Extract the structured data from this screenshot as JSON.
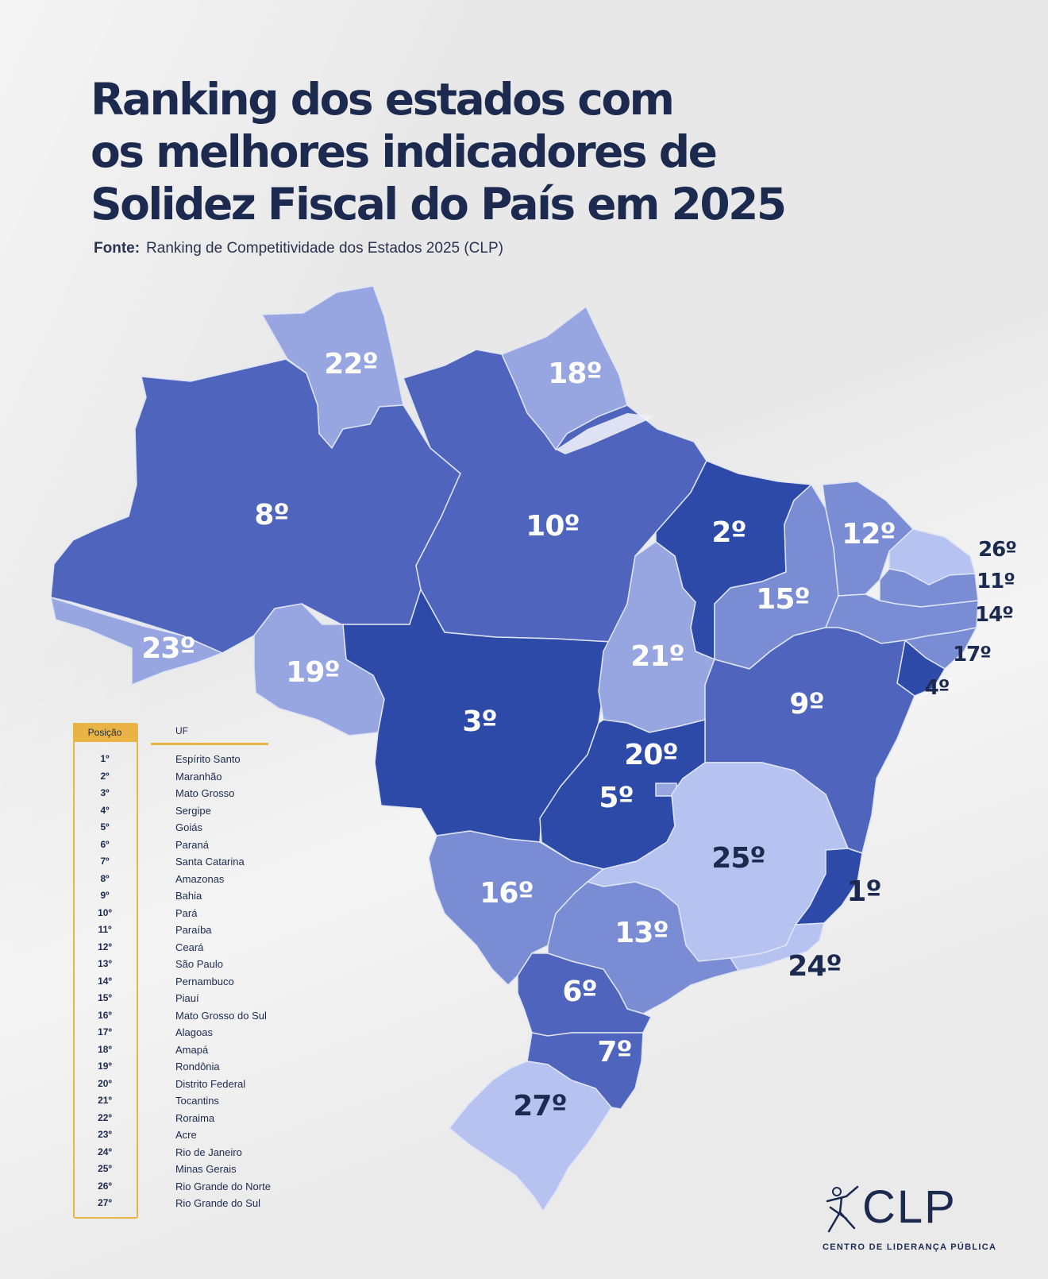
{
  "title": {
    "line1": "Ranking dos estados com",
    "line2": "os melhores indicadores de",
    "line3": "Solidez Fiscal do País em 2025"
  },
  "source": {
    "label": "Fonte:",
    "text": "Ranking de Competitividade dos Estados 2025 (CLP)"
  },
  "colors": {
    "rank_1_5": "#2d4aa8",
    "rank_6_10": "#4f65bd",
    "rank_11_17": "#7a8dd4",
    "rank_18_23": "#97a6e0",
    "rank_24_27": "#b6c2f0",
    "label_light": "#ffffff",
    "label_dark": "#1c2a50",
    "accent": "#e9b443"
  },
  "map_labels": [
    {
      "id": "AM",
      "text": "8º"
    },
    {
      "id": "PA",
      "text": "10º"
    },
    {
      "id": "RR",
      "text": "22º"
    },
    {
      "id": "AP",
      "text": "18º"
    },
    {
      "id": "MA",
      "text": "2º"
    },
    {
      "id": "CE",
      "text": "12º"
    },
    {
      "id": "PI",
      "text": "15º"
    },
    {
      "id": "RN",
      "text": "26º"
    },
    {
      "id": "PB",
      "text": "11º"
    },
    {
      "id": "PE",
      "text": "14º"
    },
    {
      "id": "AL",
      "text": "17º"
    },
    {
      "id": "SE",
      "text": "4º"
    },
    {
      "id": "BA",
      "text": "9º"
    },
    {
      "id": "TO",
      "text": "21º"
    },
    {
      "id": "AC",
      "text": "23º"
    },
    {
      "id": "RO",
      "text": "19º"
    },
    {
      "id": "MT",
      "text": "3º"
    },
    {
      "id": "DF",
      "text": "20º"
    },
    {
      "id": "GO",
      "text": "5º"
    },
    {
      "id": "MG",
      "text": "25º"
    },
    {
      "id": "ES",
      "text": "1º"
    },
    {
      "id": "MS",
      "text": "16º"
    },
    {
      "id": "SP",
      "text": "13º"
    },
    {
      "id": "RJ",
      "text": "24º"
    },
    {
      "id": "PR",
      "text": "6º"
    },
    {
      "id": "SC",
      "text": "7º"
    },
    {
      "id": "RS",
      "text": "27º"
    }
  ],
  "legend": {
    "pos_header": "Posição",
    "uf_header": "UF",
    "rows": [
      {
        "pos": "1º",
        "uf": "Espírito Santo"
      },
      {
        "pos": "2º",
        "uf": "Maranhão"
      },
      {
        "pos": "3º",
        "uf": "Mato Grosso"
      },
      {
        "pos": "4º",
        "uf": "Sergipe"
      },
      {
        "pos": "5º",
        "uf": "Goiás"
      },
      {
        "pos": "6º",
        "uf": "Paraná"
      },
      {
        "pos": "7º",
        "uf": "Santa Catarina"
      },
      {
        "pos": "8º",
        "uf": "Amazonas"
      },
      {
        "pos": "9º",
        "uf": "Bahia"
      },
      {
        "pos": "10º",
        "uf": "Pará"
      },
      {
        "pos": "11º",
        "uf": "Paraíba"
      },
      {
        "pos": "12º",
        "uf": "Ceará"
      },
      {
        "pos": "13º",
        "uf": "São Paulo"
      },
      {
        "pos": "14º",
        "uf": "Pernambuco"
      },
      {
        "pos": "15º",
        "uf": "Piauí"
      },
      {
        "pos": "16º",
        "uf": "Mato Grosso do Sul"
      },
      {
        "pos": "17º",
        "uf": "Alagoas"
      },
      {
        "pos": "18º",
        "uf": "Amapá"
      },
      {
        "pos": "19º",
        "uf": "Rondônia"
      },
      {
        "pos": "20º",
        "uf": "Distrito Federal"
      },
      {
        "pos": "21º",
        "uf": "Tocantins"
      },
      {
        "pos": "22º",
        "uf": "Roraima"
      },
      {
        "pos": "23º",
        "uf": "Acre"
      },
      {
        "pos": "24º",
        "uf": "Rio de Janeiro"
      },
      {
        "pos": "25º",
        "uf": "Minas Gerais"
      },
      {
        "pos": "26º",
        "uf": "Rio Grande do Norte"
      },
      {
        "pos": "27º",
        "uf": "Rio Grande do Sul"
      }
    ]
  },
  "logo": {
    "name": "CLP",
    "subtitle": "CENTRO DE LIDERANÇA PÚBLICA"
  }
}
